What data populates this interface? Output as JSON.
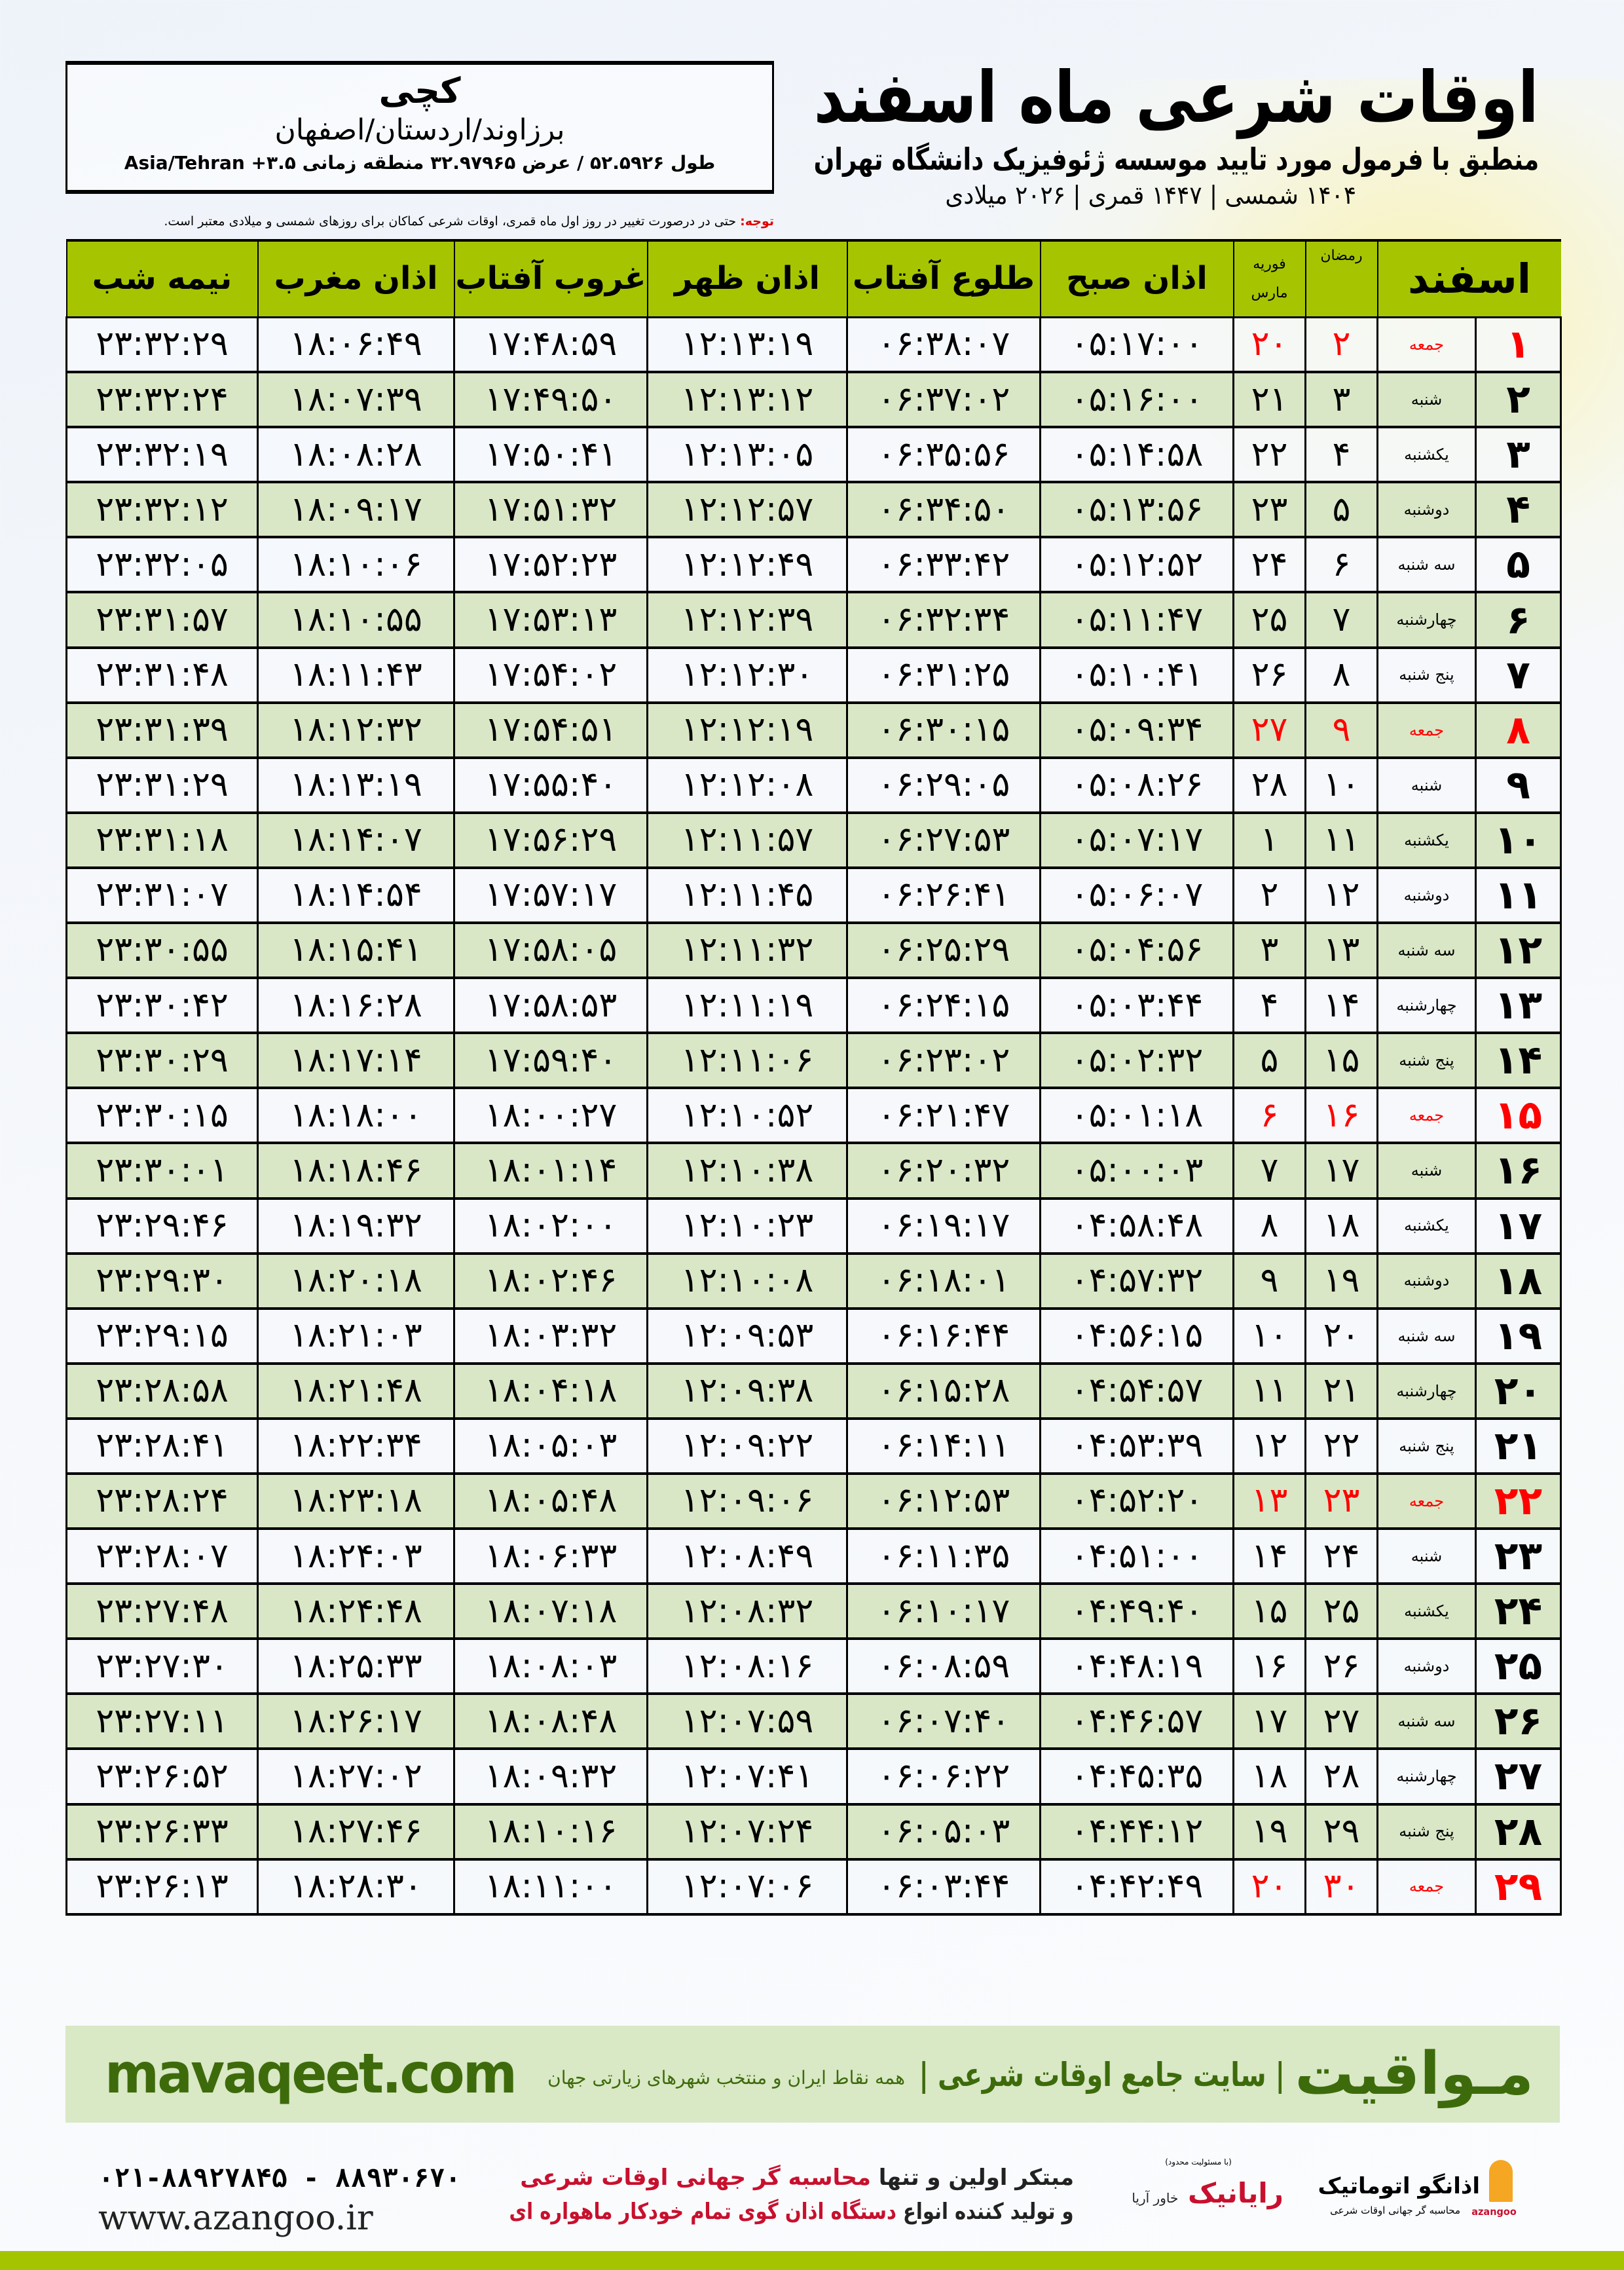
{
  "header": {
    "title": "اوقات شرعی ماه اسفند",
    "subtitle": "منطبق با فرمول مورد تایید موسسه ژئوفیزیک دانشگاه تهران",
    "dateline": "۱۴۰۴ شمسی | ۱۴۴۷ قمری | ۲۰۲۶ میلادی"
  },
  "location": {
    "city": "کچی",
    "region": "برزاوند/اردستان/اصفهان",
    "coords": "طول ۵۲.۵۹۲۶ / عرض ۳۲.۹۷۹۶۵ منطقه زمانی ۳.۵+ Asia/Tehran"
  },
  "note": {
    "label": "توجه:",
    "text": " حتی در درصورت تغییر در روز اول ماه قمری، اوقات شرعی کماکان برای روزهای شمسی و میلادی معتبر است."
  },
  "table": {
    "headers": {
      "month": "اسفند",
      "ramadan": "رمضان",
      "feb": "فوریه",
      "march": "مارس",
      "fajr": "اذان صبح",
      "sunrise": "طلوع آفتاب",
      "dhuhr": "اذان ظهر",
      "sunset": "غروب آفتاب",
      "maghrib": "اذان مغرب",
      "midnight": "نیمه شب"
    },
    "columns": [
      "day",
      "weekday",
      "ramadan",
      "gregorian",
      "fajr",
      "sunrise",
      "dhuhr",
      "sunset",
      "maghrib",
      "midnight"
    ],
    "highlight_color": "#ff0000",
    "rows": [
      [
        "۱",
        "جمعه",
        "۲",
        "۲۰",
        "۰۵:۱۷:۰۰",
        "۰۶:۳۸:۰۷",
        "۱۲:۱۳:۱۹",
        "۱۷:۴۸:۵۹",
        "۱۸:۰۶:۴۹",
        "۲۳:۳۲:۲۹"
      ],
      [
        "۲",
        "شنبه",
        "۳",
        "۲۱",
        "۰۵:۱۶:۰۰",
        "۰۶:۳۷:۰۲",
        "۱۲:۱۳:۱۲",
        "۱۷:۴۹:۵۰",
        "۱۸:۰۷:۳۹",
        "۲۳:۳۲:۲۴"
      ],
      [
        "۳",
        "یکشنبه",
        "۴",
        "۲۲",
        "۰۵:۱۴:۵۸",
        "۰۶:۳۵:۵۶",
        "۱۲:۱۳:۰۵",
        "۱۷:۵۰:۴۱",
        "۱۸:۰۸:۲۸",
        "۲۳:۳۲:۱۹"
      ],
      [
        "۴",
        "دوشنبه",
        "۵",
        "۲۳",
        "۰۵:۱۳:۵۶",
        "۰۶:۳۴:۵۰",
        "۱۲:۱۲:۵۷",
        "۱۷:۵۱:۳۲",
        "۱۸:۰۹:۱۷",
        "۲۳:۳۲:۱۲"
      ],
      [
        "۵",
        "سه شنبه",
        "۶",
        "۲۴",
        "۰۵:۱۲:۵۲",
        "۰۶:۳۳:۴۲",
        "۱۲:۱۲:۴۹",
        "۱۷:۵۲:۲۳",
        "۱۸:۱۰:۰۶",
        "۲۳:۳۲:۰۵"
      ],
      [
        "۶",
        "چهارشنبه",
        "۷",
        "۲۵",
        "۰۵:۱۱:۴۷",
        "۰۶:۳۲:۳۴",
        "۱۲:۱۲:۳۹",
        "۱۷:۵۳:۱۳",
        "۱۸:۱۰:۵۵",
        "۲۳:۳۱:۵۷"
      ],
      [
        "۷",
        "پنج شنبه",
        "۸",
        "۲۶",
        "۰۵:۱۰:۴۱",
        "۰۶:۳۱:۲۵",
        "۱۲:۱۲:۳۰",
        "۱۷:۵۴:۰۲",
        "۱۸:۱۱:۴۳",
        "۲۳:۳۱:۴۸"
      ],
      [
        "۸",
        "جمعه",
        "۹",
        "۲۷",
        "۰۵:۰۹:۳۴",
        "۰۶:۳۰:۱۵",
        "۱۲:۱۲:۱۹",
        "۱۷:۵۴:۵۱",
        "۱۸:۱۲:۳۲",
        "۲۳:۳۱:۳۹"
      ],
      [
        "۹",
        "شنبه",
        "۱۰",
        "۲۸",
        "۰۵:۰۸:۲۶",
        "۰۶:۲۹:۰۵",
        "۱۲:۱۲:۰۸",
        "۱۷:۵۵:۴۰",
        "۱۸:۱۳:۱۹",
        "۲۳:۳۱:۲۹"
      ],
      [
        "۱۰",
        "یکشنبه",
        "۱۱",
        "۱",
        "۰۵:۰۷:۱۷",
        "۰۶:۲۷:۵۳",
        "۱۲:۱۱:۵۷",
        "۱۷:۵۶:۲۹",
        "۱۸:۱۴:۰۷",
        "۲۳:۳۱:۱۸"
      ],
      [
        "۱۱",
        "دوشنبه",
        "۱۲",
        "۲",
        "۰۵:۰۶:۰۷",
        "۰۶:۲۶:۴۱",
        "۱۲:۱۱:۴۵",
        "۱۷:۵۷:۱۷",
        "۱۸:۱۴:۵۴",
        "۲۳:۳۱:۰۷"
      ],
      [
        "۱۲",
        "سه شنبه",
        "۱۳",
        "۳",
        "۰۵:۰۴:۵۶",
        "۰۶:۲۵:۲۹",
        "۱۲:۱۱:۳۲",
        "۱۷:۵۸:۰۵",
        "۱۸:۱۵:۴۱",
        "۲۳:۳۰:۵۵"
      ],
      [
        "۱۳",
        "چهارشنبه",
        "۱۴",
        "۴",
        "۰۵:۰۳:۴۴",
        "۰۶:۲۴:۱۵",
        "۱۲:۱۱:۱۹",
        "۱۷:۵۸:۵۳",
        "۱۸:۱۶:۲۸",
        "۲۳:۳۰:۴۲"
      ],
      [
        "۱۴",
        "پنج شنبه",
        "۱۵",
        "۵",
        "۰۵:۰۲:۳۲",
        "۰۶:۲۳:۰۲",
        "۱۲:۱۱:۰۶",
        "۱۷:۵۹:۴۰",
        "۱۸:۱۷:۱۴",
        "۲۳:۳۰:۲۹"
      ],
      [
        "۱۵",
        "جمعه",
        "۱۶",
        "۶",
        "۰۵:۰۱:۱۸",
        "۰۶:۲۱:۴۷",
        "۱۲:۱۰:۵۲",
        "۱۸:۰۰:۲۷",
        "۱۸:۱۸:۰۰",
        "۲۳:۳۰:۱۵"
      ],
      [
        "۱۶",
        "شنبه",
        "۱۷",
        "۷",
        "۰۵:۰۰:۰۳",
        "۰۶:۲۰:۳۲",
        "۱۲:۱۰:۳۸",
        "۱۸:۰۱:۱۴",
        "۱۸:۱۸:۴۶",
        "۲۳:۳۰:۰۱"
      ],
      [
        "۱۷",
        "یکشنبه",
        "۱۸",
        "۸",
        "۰۴:۵۸:۴۸",
        "۰۶:۱۹:۱۷",
        "۱۲:۱۰:۲۳",
        "۱۸:۰۲:۰۰",
        "۱۸:۱۹:۳۲",
        "۲۳:۲۹:۴۶"
      ],
      [
        "۱۸",
        "دوشنبه",
        "۱۹",
        "۹",
        "۰۴:۵۷:۳۲",
        "۰۶:۱۸:۰۱",
        "۱۲:۱۰:۰۸",
        "۱۸:۰۲:۴۶",
        "۱۸:۲۰:۱۸",
        "۲۳:۲۹:۳۰"
      ],
      [
        "۱۹",
        "سه شنبه",
        "۲۰",
        "۱۰",
        "۰۴:۵۶:۱۵",
        "۰۶:۱۶:۴۴",
        "۱۲:۰۹:۵۳",
        "۱۸:۰۳:۳۲",
        "۱۸:۲۱:۰۳",
        "۲۳:۲۹:۱۵"
      ],
      [
        "۲۰",
        "چهارشنبه",
        "۲۱",
        "۱۱",
        "۰۴:۵۴:۵۷",
        "۰۶:۱۵:۲۸",
        "۱۲:۰۹:۳۸",
        "۱۸:۰۴:۱۸",
        "۱۸:۲۱:۴۸",
        "۲۳:۲۸:۵۸"
      ],
      [
        "۲۱",
        "پنج شنبه",
        "۲۲",
        "۱۲",
        "۰۴:۵۳:۳۹",
        "۰۶:۱۴:۱۱",
        "۱۲:۰۹:۲۲",
        "۱۸:۰۵:۰۳",
        "۱۸:۲۲:۳۴",
        "۲۳:۲۸:۴۱"
      ],
      [
        "۲۲",
        "جمعه",
        "۲۳",
        "۱۳",
        "۰۴:۵۲:۲۰",
        "۰۶:۱۲:۵۳",
        "۱۲:۰۹:۰۶",
        "۱۸:۰۵:۴۸",
        "۱۸:۲۳:۱۸",
        "۲۳:۲۸:۲۴"
      ],
      [
        "۲۳",
        "شنبه",
        "۲۴",
        "۱۴",
        "۰۴:۵۱:۰۰",
        "۰۶:۱۱:۳۵",
        "۱۲:۰۸:۴۹",
        "۱۸:۰۶:۳۳",
        "۱۸:۲۴:۰۳",
        "۲۳:۲۸:۰۷"
      ],
      [
        "۲۴",
        "یکشنبه",
        "۲۵",
        "۱۵",
        "۰۴:۴۹:۴۰",
        "۰۶:۱۰:۱۷",
        "۱۲:۰۸:۳۲",
        "۱۸:۰۷:۱۸",
        "۱۸:۲۴:۴۸",
        "۲۳:۲۷:۴۸"
      ],
      [
        "۲۵",
        "دوشنبه",
        "۲۶",
        "۱۶",
        "۰۴:۴۸:۱۹",
        "۰۶:۰۸:۵۹",
        "۱۲:۰۸:۱۶",
        "۱۸:۰۸:۰۳",
        "۱۸:۲۵:۳۳",
        "۲۳:۲۷:۳۰"
      ],
      [
        "۲۶",
        "سه شنبه",
        "۲۷",
        "۱۷",
        "۰۴:۴۶:۵۷",
        "۰۶:۰۷:۴۰",
        "۱۲:۰۷:۵۹",
        "۱۸:۰۸:۴۸",
        "۱۸:۲۶:۱۷",
        "۲۳:۲۷:۱۱"
      ],
      [
        "۲۷",
        "چهارشنبه",
        "۲۸",
        "۱۸",
        "۰۴:۴۵:۳۵",
        "۰۶:۰۶:۲۲",
        "۱۲:۰۷:۴۱",
        "۱۸:۰۹:۳۲",
        "۱۸:۲۷:۰۲",
        "۲۳:۲۶:۵۲"
      ],
      [
        "۲۸",
        "پنج شنبه",
        "۲۹",
        "۱۹",
        "۰۴:۴۴:۱۲",
        "۰۶:۰۵:۰۳",
        "۱۲:۰۷:۲۴",
        "۱۸:۱۰:۱۶",
        "۱۸:۲۷:۴۶",
        "۲۳:۲۶:۳۳"
      ],
      [
        "۲۹",
        "جمعه",
        "۳۰",
        "۲۰",
        "۰۴:۴۲:۴۹",
        "۰۶:۰۳:۴۴",
        "۱۲:۰۷:۰۶",
        "۱۸:۱۱:۰۰",
        "۱۸:۲۸:۳۰",
        "۲۳:۲۶:۱۳"
      ]
    ]
  },
  "footer": {
    "brand": "مـواقیت",
    "brand_tagline": "| سایت جامع اوقات شرعی |",
    "brand_tagline2": "همه نقاط ایران و منتخب شهرهای زیارتی جهان",
    "site": "mavaqeet.com",
    "phone": "۰۲۱-۸۸۹۲۷۸۴۵ - ۸۸۹۳۰۶۷۰",
    "www": "www.azangoo.ir",
    "promo_line1_a": "مبتکر اولین و تنها ",
    "promo_line1_b": "محاسبه گر جهانی اوقات شرعی",
    "promo_line2_a": "و تولید کننده انواع ",
    "promo_line2_b": "دستگاه اذان گوی تمام خودکار ماهواره ای",
    "logo_rayanik": "رایانیک",
    "logo_rayanik_side": "خاور آریا",
    "logo_rayanik_tiny": "(با مسئولیت محدود)",
    "logo_azangoo": "اذانگو اتوماتیک",
    "logo_azangoo_sub": "محاسبه گر جهانی اوقات شرعی",
    "logo_azangoo_en": "azangoo",
    "colors": {
      "band": "#d9e8c5",
      "brand": "#3d6b0b",
      "accent": "#c8102e",
      "bar": "#a4c400"
    }
  }
}
